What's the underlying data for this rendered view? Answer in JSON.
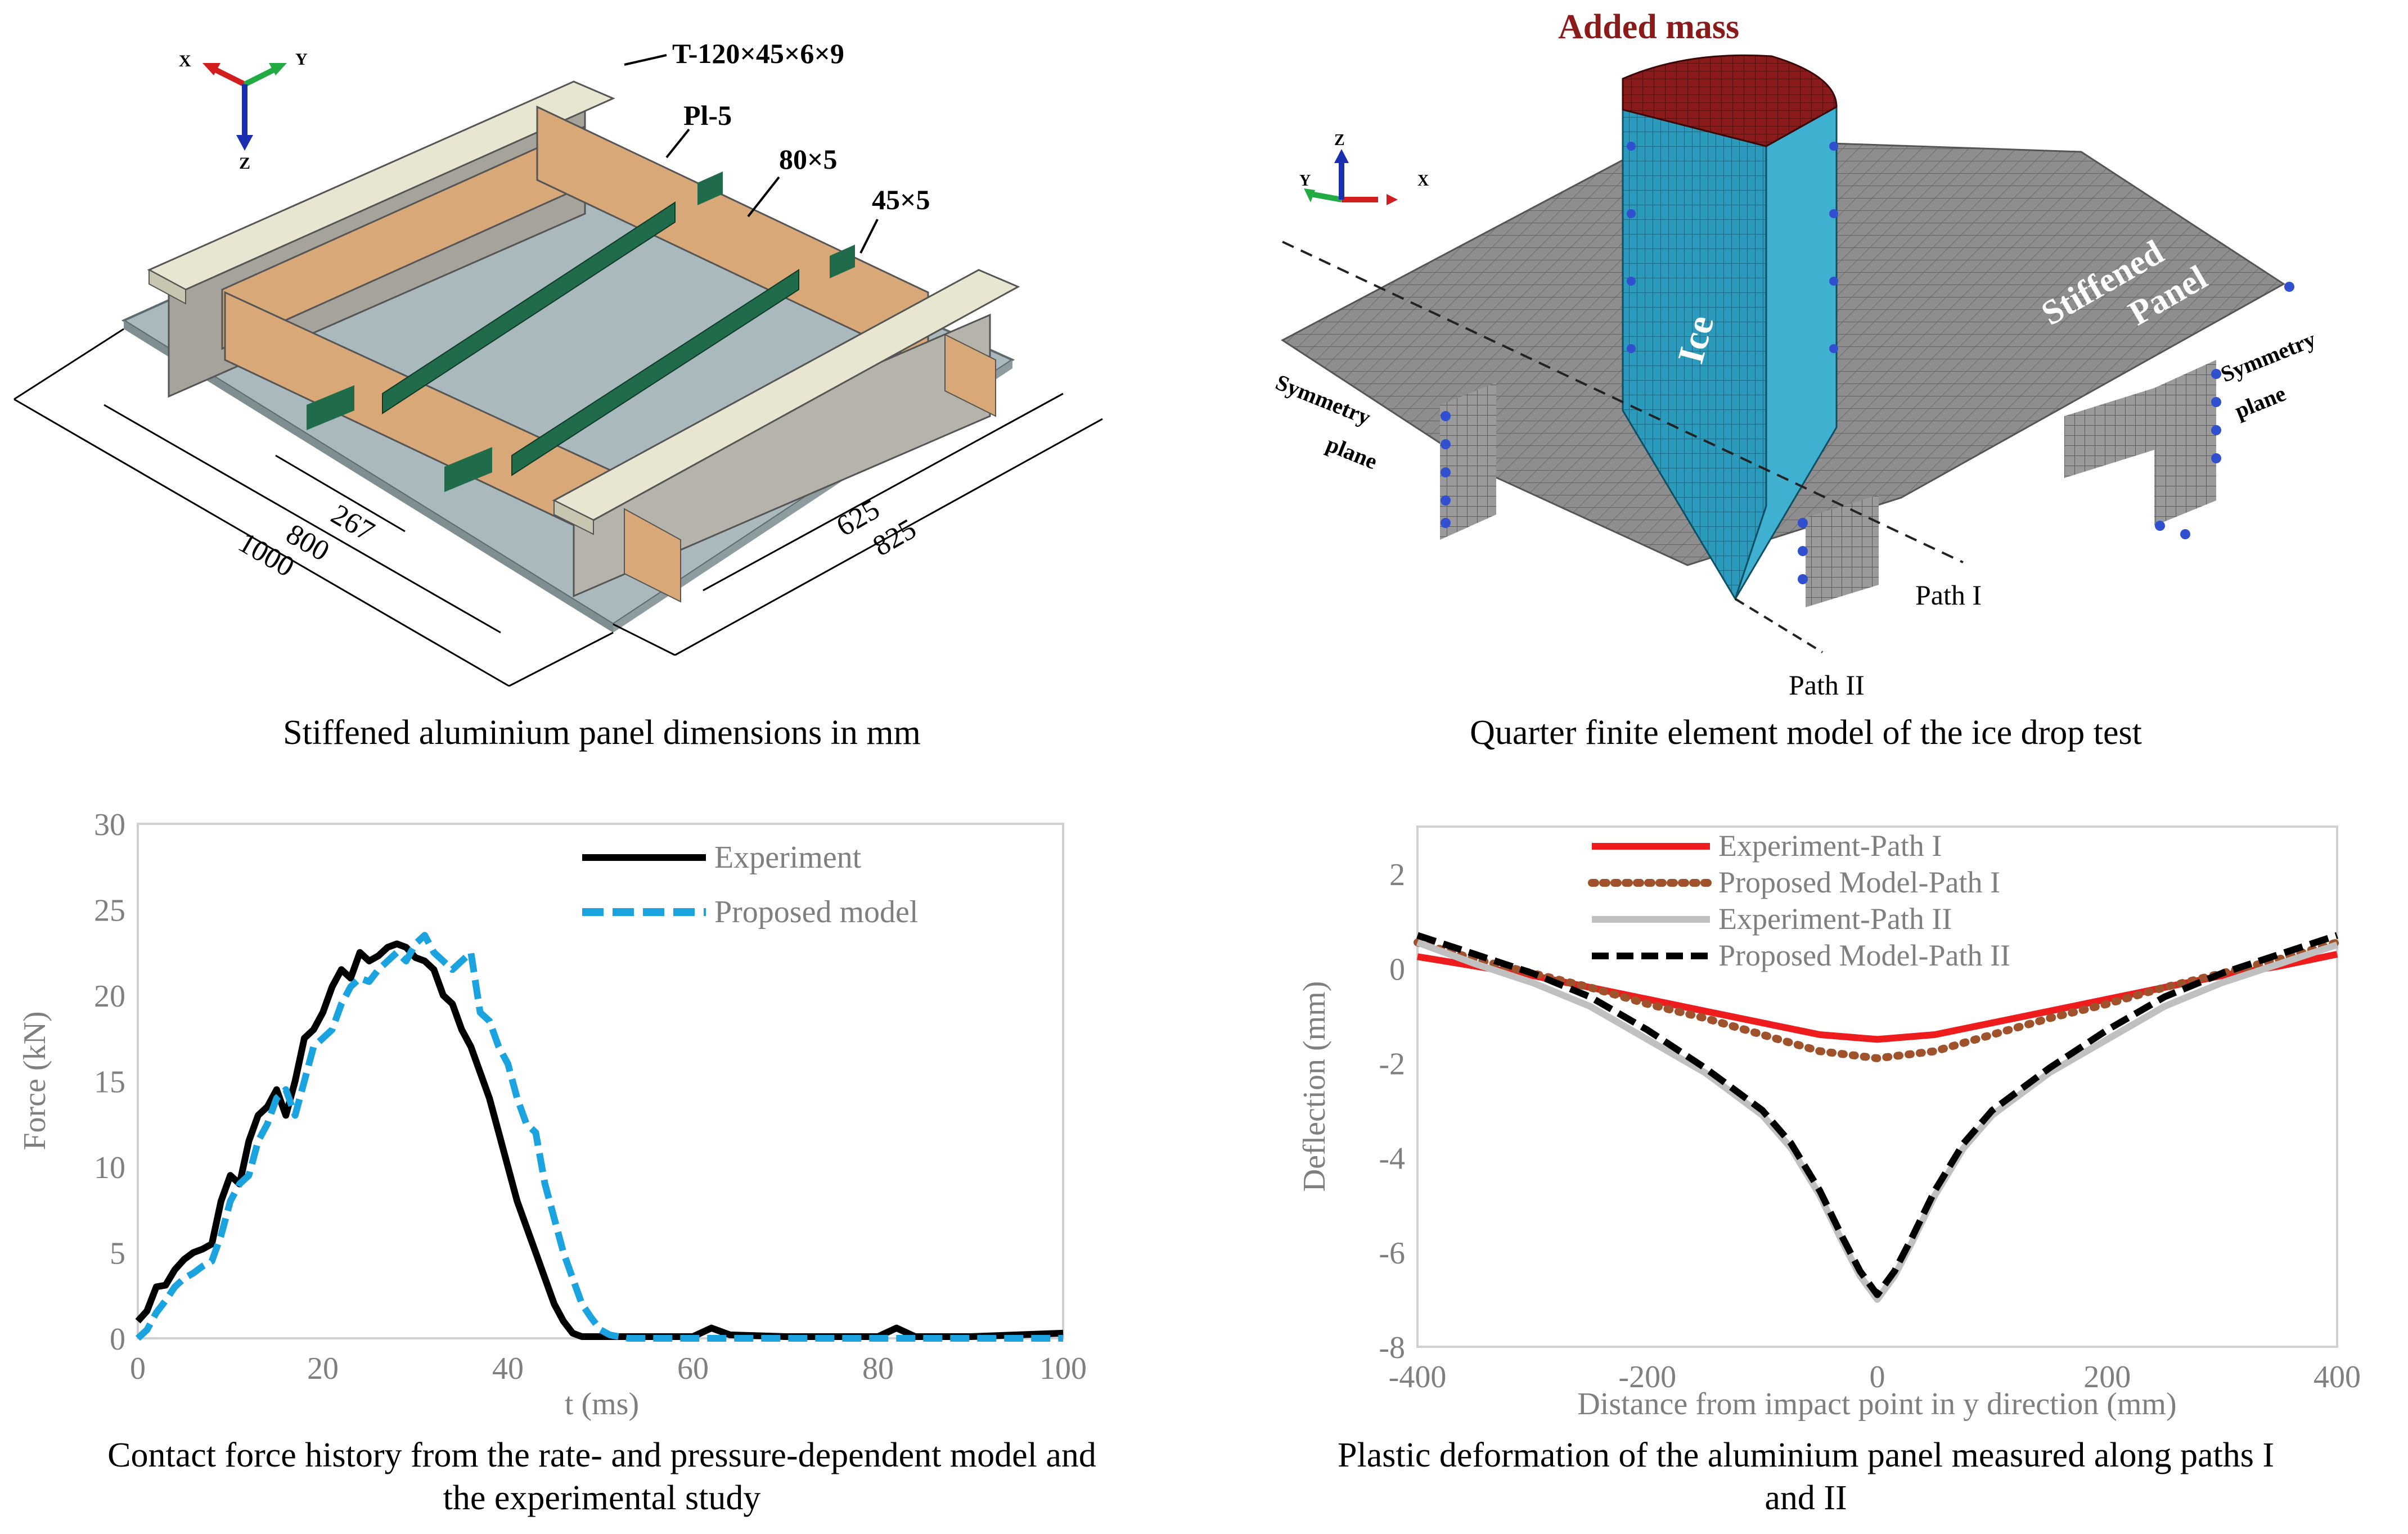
{
  "panel_a": {
    "caption": "Stiffened aluminium panel dimensions in mm",
    "axes": {
      "x": "X",
      "y": "Y",
      "z": "Z"
    },
    "labels": {
      "t_section": "T-120×45×6×9",
      "plate": "Pl-5",
      "girder": "80×5",
      "stiffener": "45×5",
      "dim_267": "267",
      "dim_800": "800",
      "dim_1000": "1000",
      "dim_625": "625",
      "dim_825": "825"
    }
  },
  "panel_b": {
    "caption": "Quarter finite element model of the ice drop test",
    "axes": {
      "x": "X",
      "y": "Y",
      "z": "Z"
    },
    "labels": {
      "added_mass": "Added mass",
      "ice": "Ice",
      "stiffened": "Stiffened",
      "panel": "Panel",
      "symmetry_left_1": "Symmetry",
      "symmetry_left_2": "plane",
      "symmetry_right_1": "Symmetry",
      "symmetry_right_2": "plane",
      "path1": "Path I",
      "path2": "Path II"
    },
    "colors": {
      "ice": "#2a9bbd",
      "mass": "#8b1a1a",
      "mesh": "#8a8a8a"
    }
  },
  "chart_data": [
    {
      "type": "line",
      "caption_line1": "Contact force history from the rate- and pressure-dependent model and",
      "caption_line2": "the experimental study",
      "xlabel": "t (ms)",
      "ylabel": "Force (kN)",
      "xlim": [
        0,
        100
      ],
      "ylim": [
        0,
        30
      ],
      "xticks": [
        0,
        20,
        40,
        60,
        80,
        100
      ],
      "yticks": [
        0,
        5,
        10,
        15,
        20,
        25,
        30
      ],
      "legend_position": "top-right",
      "series": [
        {
          "name": "Experiment",
          "color": "#000000",
          "dash": "solid",
          "x": [
            0,
            1,
            2,
            3,
            4,
            5,
            6,
            7,
            8,
            9,
            10,
            11,
            12,
            13,
            14,
            15,
            16,
            17,
            18,
            19,
            20,
            21,
            22,
            23,
            24,
            25,
            26,
            27,
            28,
            29,
            30,
            31,
            32,
            33,
            34,
            35,
            36,
            37,
            38,
            39,
            40,
            41,
            42,
            43,
            44,
            45,
            46,
            47,
            48,
            49,
            50,
            52,
            55,
            60,
            62,
            64,
            70,
            80,
            82,
            84,
            90,
            100
          ],
          "y": [
            1,
            1.6,
            3,
            3.1,
            4,
            4.6,
            5,
            5.2,
            5.5,
            8,
            9.5,
            9,
            11.5,
            13,
            13.5,
            14.5,
            13,
            15,
            17.5,
            18,
            19,
            20.5,
            21.5,
            21,
            22.5,
            22,
            22.3,
            22.8,
            23,
            22.8,
            22.2,
            22,
            21.5,
            20,
            19.5,
            18,
            17,
            15.5,
            14,
            12,
            10,
            8,
            6.5,
            5,
            3.5,
            2,
            1,
            0.3,
            0.1,
            0.1,
            0.1,
            0.1,
            0.1,
            0.1,
            0.6,
            0.2,
            0.1,
            0.1,
            0.6,
            0.1,
            0.1,
            0.3
          ]
        },
        {
          "name": "Proposed model",
          "color": "#1ba3e0",
          "dash": "dashed",
          "x": [
            0,
            1,
            2,
            3,
            4,
            5,
            6,
            7,
            8,
            9,
            10,
            11,
            12,
            13,
            14,
            15,
            16,
            17,
            18,
            19,
            20,
            21,
            22,
            23,
            24,
            25,
            26,
            27,
            28,
            29,
            30,
            31,
            32,
            33,
            34,
            35,
            36,
            37,
            38,
            39,
            40,
            41,
            42,
            43,
            44,
            45,
            46,
            47,
            48,
            49,
            50,
            51,
            52,
            53,
            55,
            60,
            70,
            80,
            90,
            100
          ],
          "y": [
            0,
            0.5,
            1.5,
            2.2,
            3,
            3.5,
            3.8,
            4.2,
            4.5,
            6,
            8,
            9,
            9.5,
            11.5,
            12.5,
            14,
            14.5,
            13,
            15,
            17,
            17.5,
            18,
            19.5,
            20.5,
            21,
            20.8,
            21.5,
            22,
            22.5,
            22,
            23,
            23.5,
            22.5,
            22,
            21.5,
            22,
            22.5,
            19,
            18.5,
            17,
            16,
            14,
            12.5,
            12,
            9,
            7,
            5,
            3.5,
            2,
            1.2,
            0.5,
            0.2,
            0.1,
            0,
            0,
            0,
            0,
            0,
            0,
            0
          ]
        }
      ]
    },
    {
      "type": "line",
      "caption_line1": "Plastic deformation of the aluminium panel measured along paths I",
      "caption_line2": "and II",
      "xlabel": "Distance from impact point in y direction (mm)",
      "ylabel": "Deflection (mm)",
      "xlim": [
        -400,
        400
      ],
      "ylim": [
        -8,
        3
      ],
      "xticks": [
        -400,
        -200,
        0,
        200,
        400
      ],
      "yticks": [
        -8,
        -6,
        -4,
        -2,
        0,
        2
      ],
      "legend_position": "top-right",
      "series": [
        {
          "name": "Experiment-Path I",
          "color": "#ee1c1c",
          "dash": "solid",
          "x": [
            -400,
            -350,
            -300,
            -250,
            -200,
            -150,
            -100,
            -50,
            0,
            50,
            100,
            150,
            200,
            250,
            300,
            350,
            400
          ],
          "y": [
            0.25,
            0.05,
            -0.15,
            -0.4,
            -0.65,
            -0.9,
            -1.15,
            -1.4,
            -1.5,
            -1.4,
            -1.15,
            -0.9,
            -0.65,
            -0.4,
            -0.15,
            0.05,
            0.3
          ]
        },
        {
          "name": "Proposed Model-Path I",
          "color": "#a0522d",
          "dash": "dotted",
          "x": [
            -400,
            -350,
            -300,
            -250,
            -200,
            -150,
            -100,
            -50,
            0,
            50,
            100,
            150,
            200,
            250,
            300,
            350,
            400
          ],
          "y": [
            0.55,
            0.2,
            -0.1,
            -0.4,
            -0.75,
            -1.05,
            -1.4,
            -1.75,
            -1.9,
            -1.75,
            -1.4,
            -1.05,
            -0.75,
            -0.4,
            -0.1,
            0.2,
            0.55
          ]
        },
        {
          "name": "Experiment-Path II",
          "color": "#c0c0c0",
          "dash": "solid",
          "x": [
            -400,
            -350,
            -300,
            -250,
            -200,
            -150,
            -100,
            -75,
            -50,
            -30,
            -15,
            0,
            15,
            30,
            50,
            75,
            100,
            150,
            200,
            250,
            300,
            350,
            400
          ],
          "y": [
            0.55,
            0.1,
            -0.3,
            -0.8,
            -1.5,
            -2.2,
            -3.1,
            -3.8,
            -4.8,
            -5.8,
            -6.5,
            -7,
            -6.5,
            -5.8,
            -4.8,
            -3.8,
            -3.1,
            -2.2,
            -1.5,
            -0.8,
            -0.3,
            0.1,
            0.5
          ]
        },
        {
          "name": "Proposed Model-Path II",
          "color": "#000000",
          "dash": "dashed",
          "x": [
            -400,
            -350,
            -300,
            -250,
            -200,
            -150,
            -100,
            -75,
            -50,
            -30,
            -15,
            0,
            15,
            30,
            50,
            75,
            100,
            150,
            200,
            250,
            300,
            350,
            400
          ],
          "y": [
            0.7,
            0.3,
            -0.1,
            -0.6,
            -1.3,
            -2.1,
            -3.0,
            -3.7,
            -4.7,
            -5.7,
            -6.4,
            -6.9,
            -6.4,
            -5.7,
            -4.7,
            -3.7,
            -3.0,
            -2.1,
            -1.3,
            -0.6,
            -0.1,
            0.3,
            0.7
          ]
        }
      ]
    }
  ]
}
